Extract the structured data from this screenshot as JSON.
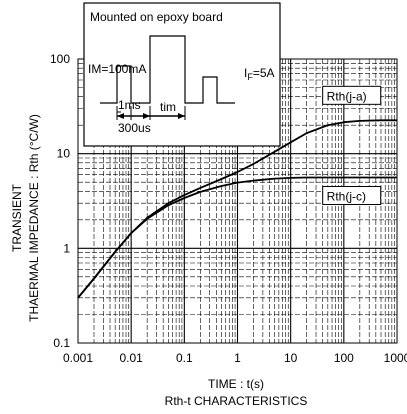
{
  "chart_data": {
    "type": "line",
    "title": "Rth-t CHARACTERISTICS",
    "xlabel": "TIME : t(s)",
    "ylabel_line1": "TRANSIENT",
    "ylabel_line2": "THAERMAL IMPEDANCE : Rth (°C/W)",
    "x_scale": "log",
    "y_scale": "log",
    "xlim": [
      0.001,
      1000
    ],
    "ylim": [
      0.1,
      100
    ],
    "x_ticks": [
      "0.001",
      "0.01",
      "0.1",
      "1",
      "10",
      "100",
      "1000"
    ],
    "y_ticks": [
      "0.1",
      "1",
      "10",
      "100"
    ],
    "grid": true,
    "series": [
      {
        "name": "Rth(j-a)",
        "x": [
          0.001,
          0.002,
          0.005,
          0.01,
          0.02,
          0.05,
          0.1,
          0.2,
          0.5,
          1,
          2,
          5,
          10,
          20,
          50,
          100,
          200,
          500,
          1000
        ],
        "y": [
          0.3,
          0.48,
          0.92,
          1.45,
          2.1,
          3.0,
          3.65,
          4.35,
          5.4,
          6.4,
          7.8,
          10.5,
          13.2,
          16.5,
          20.0,
          21.5,
          22.2,
          22.5,
          22.5
        ]
      },
      {
        "name": "Rth(j-c)",
        "x": [
          0.001,
          0.002,
          0.005,
          0.01,
          0.02,
          0.05,
          0.1,
          0.2,
          0.5,
          1,
          2,
          5,
          10,
          20,
          50,
          100,
          200,
          500,
          1000
        ],
        "y": [
          0.3,
          0.48,
          0.92,
          1.45,
          2.05,
          2.85,
          3.4,
          3.95,
          4.55,
          4.95,
          5.2,
          5.45,
          5.55,
          5.6,
          5.6,
          5.6,
          5.6,
          5.6,
          5.6
        ]
      }
    ],
    "inset": {
      "title": "Mounted on epoxy board",
      "im_label": "IM=100mA",
      "if_label_main": "I",
      "if_label_sub": "F",
      "if_label_rest": "=5A",
      "t1_label": "1ms",
      "tim_label": "tim",
      "t2_label": "300us"
    }
  }
}
